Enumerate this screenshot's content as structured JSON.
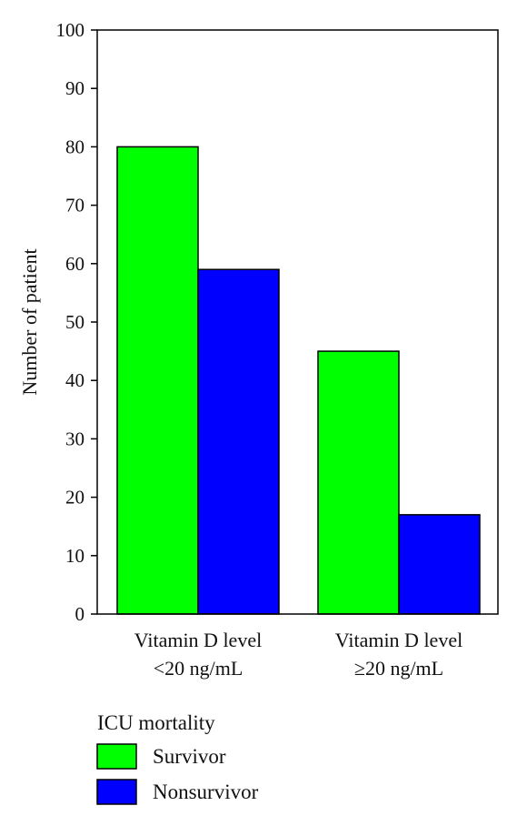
{
  "chart_data": {
    "type": "bar",
    "title": "",
    "xlabel": "",
    "ylabel": "Number of patient",
    "ylim": [
      0,
      100
    ],
    "yticks": [
      0,
      10,
      20,
      30,
      40,
      50,
      60,
      70,
      80,
      90,
      100
    ],
    "categories": [
      [
        "Vitamin D level",
        "<20 ng/mL"
      ],
      [
        "Vitamin D level",
        "≥20 ng/mL"
      ]
    ],
    "series": [
      {
        "name": "Survivor",
        "color": "#00ff00",
        "values": [
          80,
          45
        ]
      },
      {
        "name": "Nonsurvivor",
        "color": "#0000ff",
        "values": [
          59,
          17
        ]
      }
    ],
    "legend": {
      "title": "ICU mortality",
      "placement": "bottom-left"
    },
    "grid": false
  }
}
